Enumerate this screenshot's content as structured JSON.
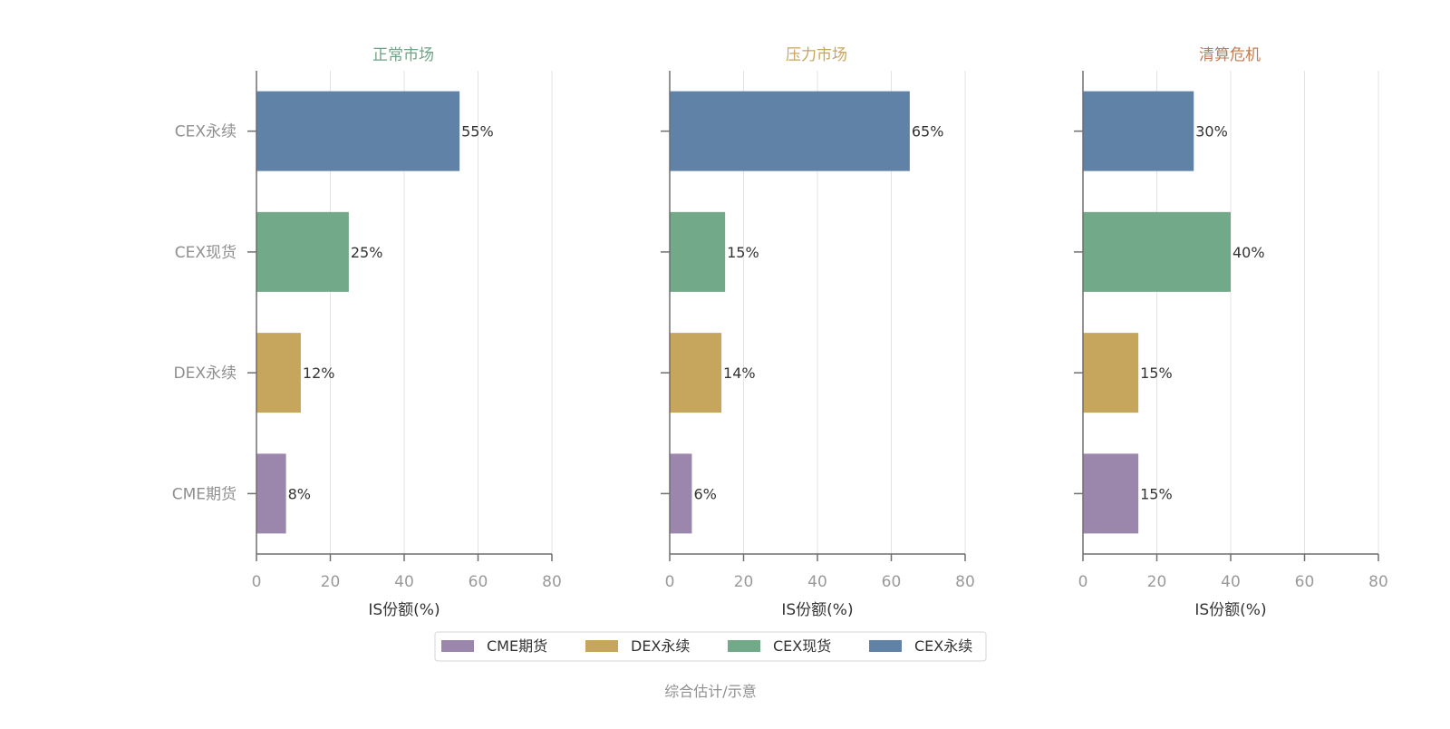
{
  "chart_data": {
    "type": "bar",
    "orientation": "horizontal",
    "categories": [
      "CME期货",
      "DEX永续",
      "CEX现货",
      "CEX永续"
    ],
    "category_colors": {
      "CME期货": "#9b87ac",
      "DEX永续": "#c6a55c",
      "CEX现货": "#72a989",
      "CEX永续": "#6082a6"
    },
    "xlabel": "IS份额(%)",
    "xlim": [
      0,
      80
    ],
    "xticks": [
      0,
      20,
      40,
      60,
      80
    ],
    "grid": "vertical",
    "value_suffix": "%",
    "panels": [
      {
        "title": "正常市场",
        "title_color": "#6ea387",
        "values": {
          "CEX永续": 55,
          "CEX现货": 25,
          "DEX永续": 12,
          "CME期货": 8
        }
      },
      {
        "title": "压力市场",
        "title_color": "#c8a45c",
        "values": {
          "CEX永续": 65,
          "CEX现货": 15,
          "DEX永续": 14,
          "CME期货": 6
        }
      },
      {
        "title": "清算危机",
        "title_color": "#c57b4f",
        "values": {
          "CEX永续": 30,
          "CEX现货": 40,
          "DEX永续": 15,
          "CME期货": 15
        }
      }
    ],
    "legend": {
      "placement": "bottom-center",
      "entries": [
        "CME期货",
        "DEX永续",
        "CEX现货",
        "CEX永续"
      ]
    },
    "footnote": "综合估计/示意"
  }
}
